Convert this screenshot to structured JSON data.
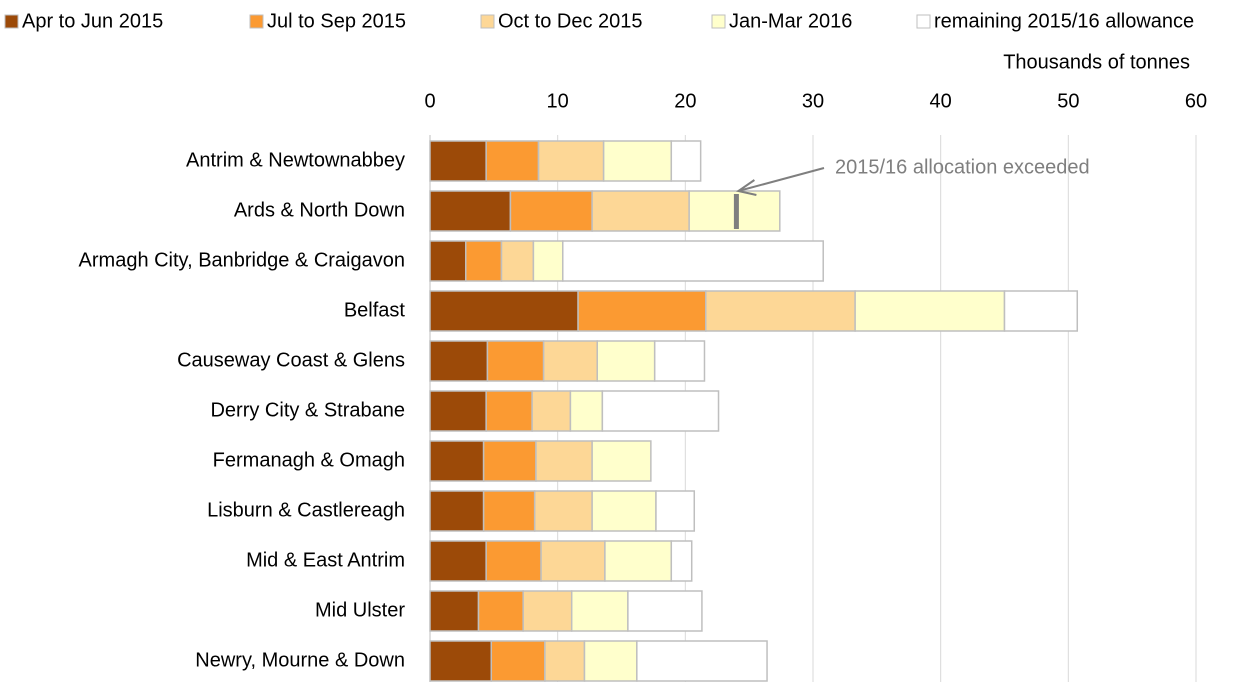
{
  "chart_data": {
    "type": "stacked-bar-horizontal",
    "x_axis_label": "Thousands of tonnes",
    "categories": [
      "Antrim & Newtownabbey",
      "Ards & North Down",
      "Armagh City, Banbridge & Craigavon",
      "Belfast",
      "Causeway Coast & Glens",
      "Derry City & Strabane",
      "Fermanagh & Omagh",
      "Lisburn & Castlereagh",
      "Mid & East Antrim",
      "Mid Ulster",
      "Newry, Mourne & Down"
    ],
    "series": [
      {
        "name": "Apr to Jun 2015",
        "color": "#9c4a08",
        "values": [
          4.4,
          6.3,
          2.8,
          11.6,
          4.5,
          4.4,
          4.2,
          4.2,
          4.4,
          3.8,
          4.8
        ]
      },
      {
        "name": "Jul to Sep 2015",
        "color": "#fb9a32",
        "values": [
          4.1,
          6.4,
          2.8,
          10.0,
          4.4,
          3.6,
          4.1,
          4.0,
          4.3,
          3.5,
          4.2
        ]
      },
      {
        "name": "Oct to Dec 2015",
        "color": "#fdd796",
        "values": [
          5.1,
          7.6,
          2.5,
          11.7,
          4.2,
          3.0,
          4.4,
          4.5,
          5.0,
          3.8,
          3.1
        ]
      },
      {
        "name": "Jan-Mar 2016",
        "color": "#ffffcc",
        "values": [
          5.3,
          7.1,
          2.3,
          11.7,
          4.5,
          2.5,
          4.6,
          5.0,
          5.2,
          4.4,
          4.1
        ]
      },
      {
        "name": "remaining 2015/16 allowance",
        "color": "#ffffff",
        "values": [
          2.3,
          0,
          20.4,
          5.7,
          3.9,
          9.1,
          0,
          3.0,
          1.6,
          5.8,
          10.2
        ]
      }
    ],
    "xlim": [
      0,
      60
    ],
    "xticks": [
      0,
      10,
      20,
      30,
      40,
      50,
      60
    ],
    "grid": true,
    "annotation": {
      "text": "2015/16 allocation exceeded",
      "category_index": 1,
      "x": 24.0
    }
  }
}
